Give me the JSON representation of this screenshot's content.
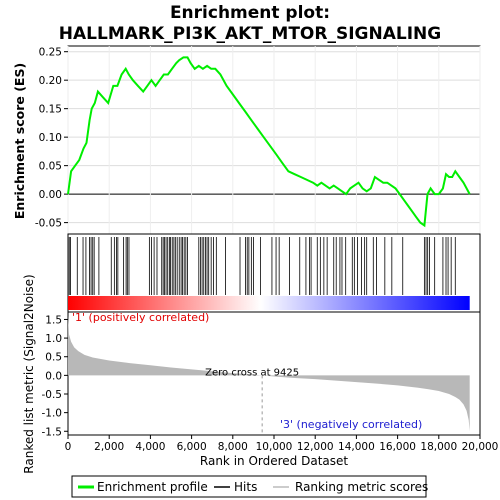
{
  "chart_data": {
    "type": "line",
    "title": "Enrichment plot:\nHALLMARK_PI3K_AKT_MTOR_SIGNALING",
    "title_lines": [
      "Enrichment plot:",
      "HALLMARK_PI3K_AKT_MTOR_SIGNALING"
    ],
    "es_panel": {
      "ylabel": "Enrichment score (ES)",
      "ylim": [
        -0.07,
        0.26
      ],
      "yticks": [
        -0.05,
        0.0,
        0.05,
        0.1,
        0.15,
        0.2,
        0.25
      ],
      "ytick_labels": [
        "-0.05",
        "0.00",
        "0.05",
        "0.10",
        "0.15",
        "0.20",
        "0.25"
      ],
      "grid": true,
      "series": [
        {
          "name": "Enrichment profile",
          "color": "#00ee00",
          "x": [
            0,
            150,
            350,
            550,
            750,
            900,
            1050,
            1150,
            1300,
            1450,
            1700,
            1950,
            2200,
            2400,
            2600,
            2800,
            2950,
            3150,
            3400,
            3650,
            3850,
            4050,
            4250,
            4450,
            4650,
            4850,
            5050,
            5250,
            5400,
            5600,
            5800,
            5950,
            6150,
            6350,
            6550,
            6750,
            6950,
            7150,
            7400,
            7700,
            8000,
            8300,
            8600,
            8900,
            9200,
            9500,
            9800,
            10100,
            10400,
            10700,
            11000,
            11300,
            11600,
            11900,
            12100,
            12300,
            12500,
            12700,
            12900,
            13100,
            13300,
            13500,
            13700,
            13900,
            14100,
            14300,
            14500,
            14700,
            14900,
            15100,
            15300,
            15500,
            15700,
            15900,
            16100,
            16300,
            16500,
            16700,
            16900,
            17100,
            17300,
            17450,
            17600,
            17800,
            18000,
            18200,
            18350,
            18500,
            18650,
            18800,
            19000,
            19200,
            19500
          ],
          "values": [
            0.0,
            0.04,
            0.05,
            0.06,
            0.08,
            0.09,
            0.13,
            0.15,
            0.16,
            0.18,
            0.17,
            0.16,
            0.19,
            0.19,
            0.21,
            0.22,
            0.21,
            0.2,
            0.19,
            0.18,
            0.19,
            0.2,
            0.19,
            0.2,
            0.21,
            0.21,
            0.22,
            0.23,
            0.235,
            0.24,
            0.24,
            0.23,
            0.22,
            0.225,
            0.22,
            0.225,
            0.22,
            0.22,
            0.21,
            0.19,
            0.175,
            0.16,
            0.145,
            0.13,
            0.115,
            0.1,
            0.085,
            0.07,
            0.055,
            0.04,
            0.035,
            0.03,
            0.025,
            0.02,
            0.015,
            0.02,
            0.015,
            0.01,
            0.015,
            0.01,
            0.005,
            0.0,
            0.01,
            0.015,
            0.02,
            0.01,
            0.005,
            0.01,
            0.03,
            0.025,
            0.02,
            0.02,
            0.015,
            0.01,
            0.0,
            -0.01,
            -0.02,
            -0.03,
            -0.04,
            -0.05,
            -0.055,
            0.0,
            0.01,
            0.0,
            0.0,
            0.01,
            0.035,
            0.03,
            0.03,
            0.04,
            0.03,
            0.02,
            0.0
          ]
        }
      ]
    },
    "hits_panel": {
      "name": "Hits",
      "positions": [
        60,
        120,
        450,
        730,
        870,
        1040,
        1120,
        1200,
        1270,
        1500,
        2100,
        2250,
        2350,
        2420,
        2700,
        2820,
        2880,
        2960,
        3950,
        4050,
        4180,
        4320,
        4550,
        4620,
        4690,
        4760,
        4840,
        4920,
        4980,
        5060,
        5140,
        5210,
        5300,
        5400,
        5490,
        5560,
        5640,
        5720,
        5800,
        6350,
        6430,
        6510,
        6590,
        6670,
        6750,
        6830,
        6950,
        7060,
        7200,
        7650,
        8350,
        8620,
        8700,
        8780,
        8900,
        9000,
        9350,
        9900,
        10100,
        10250,
        10750,
        11250,
        11550,
        11720,
        11800,
        12100,
        12250,
        12420,
        12580,
        12900,
        13020,
        13200,
        13300,
        13480,
        13800,
        13900,
        14050,
        14250,
        14400,
        14500,
        14820,
        14980,
        15380,
        15720,
        16250,
        17300,
        17380,
        17460,
        17550,
        17800,
        18200,
        18350,
        18450,
        18600,
        18800
      ]
    },
    "rank_colorbar": {
      "from_color": "#ff0000",
      "mid_color": "#ffffff",
      "to_color": "#0000ff"
    },
    "metric_panel": {
      "ylabel": "Ranked list metric (Signal2Noise)",
      "xlabel": "Rank in Ordered Dataset",
      "xlim": [
        0,
        20000
      ],
      "xticks": [
        0,
        2000,
        4000,
        6000,
        8000,
        10000,
        12000,
        14000,
        16000,
        18000,
        20000
      ],
      "xtick_labels": [
        "0",
        "2,000",
        "4,000",
        "6,000",
        "8,000",
        "10,000",
        "12,000",
        "14,000",
        "16,000",
        "18,000",
        "20,000"
      ],
      "ylim": [
        -1.6,
        1.7
      ],
      "yticks": [
        -1.5,
        -1.0,
        -0.5,
        0.0,
        0.5,
        1.0,
        1.5
      ],
      "ytick_labels": [
        "-1.5",
        "-1.0",
        "-0.5",
        "0.0",
        "0.5",
        "1.0",
        "1.5"
      ],
      "total_ranks": 19500,
      "x": [
        0,
        50,
        150,
        300,
        500,
        800,
        1200,
        2000,
        3000,
        4000,
        5000,
        6000,
        7000,
        8000,
        9000,
        9425,
        10000,
        11000,
        12000,
        13000,
        14000,
        15000,
        16000,
        17000,
        17500,
        18000,
        18500,
        18800,
        19000,
        19200,
        19350,
        19450,
        19500
      ],
      "values": [
        1.6,
        1.1,
        0.9,
        0.75,
        0.65,
        0.55,
        0.48,
        0.4,
        0.33,
        0.27,
        0.21,
        0.16,
        0.11,
        0.06,
        0.02,
        0.0,
        -0.03,
        -0.07,
        -0.1,
        -0.14,
        -0.18,
        -0.22,
        -0.27,
        -0.33,
        -0.37,
        -0.42,
        -0.5,
        -0.58,
        -0.65,
        -0.78,
        -0.95,
        -1.2,
        -1.5
      ],
      "zero_cross": 9425,
      "zero_cross_label": "Zero cross at 9425",
      "pos_label": "'1' (positively correlated)",
      "neg_label": "'3' (negatively correlated)"
    },
    "legend": {
      "items": [
        {
          "label": "Enrichment profile",
          "color": "#00ee00"
        },
        {
          "label": "Hits",
          "color": "#000000"
        },
        {
          "label": "Ranking metric scores",
          "color": "#bbbbbb"
        }
      ]
    }
  }
}
